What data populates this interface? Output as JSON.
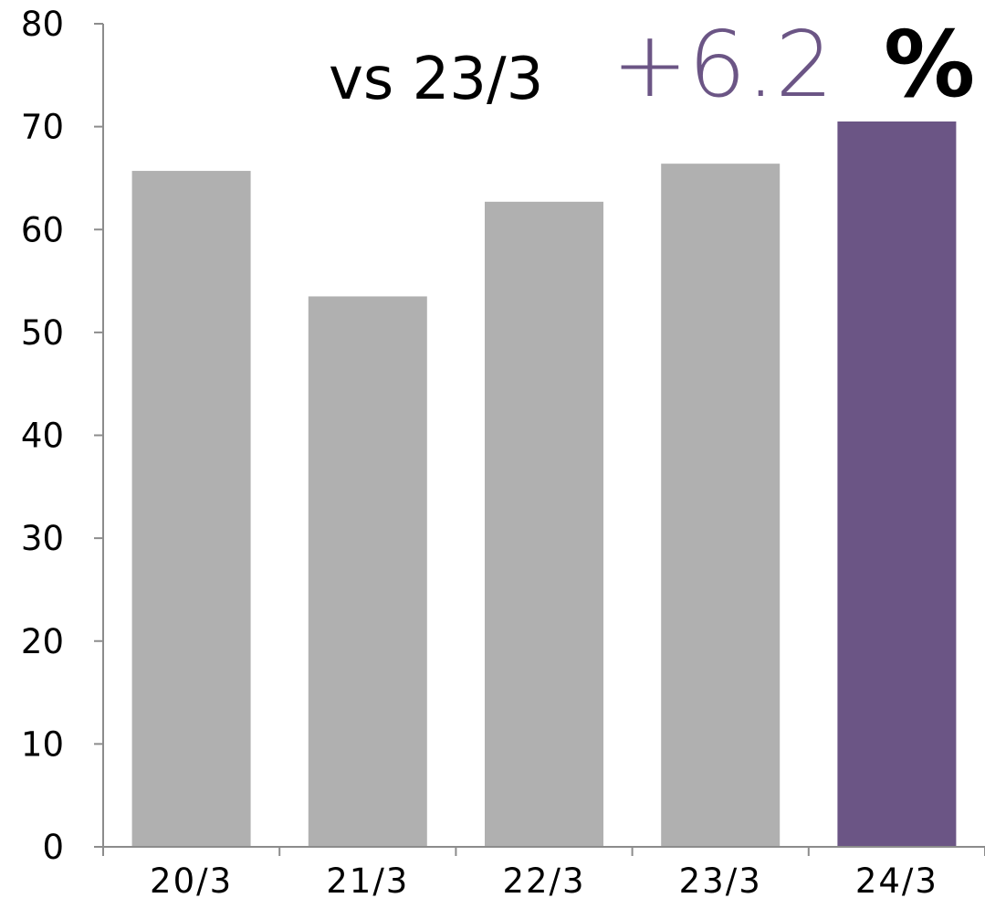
{
  "chart_data": {
    "type": "bar",
    "categories": [
      "20/3",
      "21/3",
      "22/3",
      "23/3",
      "24/3"
    ],
    "values": [
      65.7,
      53.5,
      62.7,
      66.4,
      70.5
    ],
    "ylim": [
      0,
      80
    ],
    "yticks": [
      0,
      10,
      20,
      30,
      40,
      50,
      60,
      70,
      80
    ],
    "ytick_labels": [
      "0",
      "10",
      "20",
      "30",
      "40",
      "50",
      "60",
      "70",
      "80"
    ],
    "title": "",
    "xlabel": "",
    "ylabel": "",
    "grid": false,
    "bar_colors": [
      "#b0b0b0",
      "#b0b0b0",
      "#b0b0b0",
      "#b0b0b0",
      "#6b5585"
    ],
    "annotation": {
      "prefix": "vs 23/3",
      "change": "+6.2",
      "unit": "%",
      "change_color": "#6b5585"
    }
  },
  "colors": {
    "axis": "#8c8c8c",
    "bar_default": "#b0b0b0",
    "bar_highlight": "#6b5585"
  }
}
